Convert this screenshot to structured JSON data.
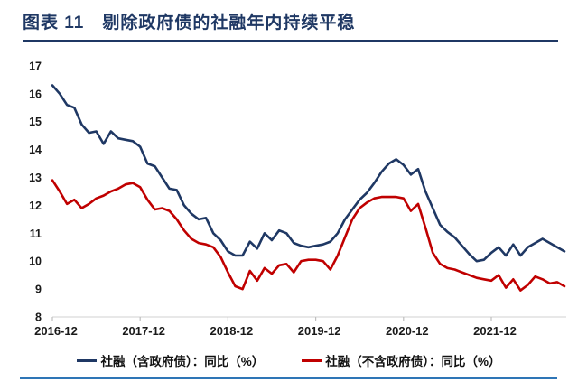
{
  "header": {
    "title": "图表 11　剔除政府债的社融年内持续平稳"
  },
  "colors": {
    "title": "#1F3864",
    "title_rule": "#1F3864",
    "bottom_rule": "#2E75B6",
    "axis_line": "#D9D9D9",
    "axis_tick": "#BFBFBF",
    "tick_text": "#1A1A1A"
  },
  "chart_data": {
    "type": "line",
    "title": "图表 11　剔除政府债的社融年内持续平稳",
    "xlabel": "",
    "ylabel": "",
    "ylim": [
      8,
      17
    ],
    "grid": false,
    "legend_position": "bottom",
    "x_start": "2016-12",
    "x_frequency": "monthly",
    "x_tick_labels": [
      "2016-12",
      "2017-12",
      "2018-12",
      "2019-12",
      "2020-12",
      "2021-12"
    ],
    "x_tick_month_index": [
      0,
      12,
      24,
      36,
      48,
      60
    ],
    "y_ticks": [
      17,
      16,
      15,
      14,
      13,
      12,
      11,
      10,
      9,
      8
    ],
    "series": [
      {
        "name": "社融（含政府债）：同比（%）",
        "color": "#1F3864",
        "values": [
          16.3,
          16.0,
          15.6,
          15.5,
          14.9,
          14.6,
          14.65,
          14.2,
          14.65,
          14.4,
          14.35,
          14.3,
          14.1,
          13.5,
          13.4,
          13.0,
          12.6,
          12.55,
          12.0,
          11.7,
          11.5,
          11.55,
          11.0,
          10.75,
          10.35,
          10.2,
          10.2,
          10.7,
          10.45,
          11.0,
          10.75,
          11.1,
          11.0,
          10.65,
          10.55,
          10.5,
          10.55,
          10.6,
          10.7,
          11.0,
          11.5,
          11.85,
          12.2,
          12.45,
          12.8,
          13.2,
          13.5,
          13.65,
          13.45,
          13.1,
          13.3,
          12.5,
          11.9,
          11.3,
          11.05,
          10.85,
          10.55,
          10.25,
          10.0,
          10.05,
          10.3,
          10.5,
          10.2,
          10.6,
          10.2,
          10.5,
          10.65,
          10.8,
          10.65,
          10.5,
          10.35
        ]
      },
      {
        "name": "社融（不含政府债）：同比（%）",
        "color": "#C00000",
        "values": [
          12.9,
          12.5,
          12.05,
          12.2,
          11.9,
          12.05,
          12.25,
          12.35,
          12.5,
          12.6,
          12.75,
          12.8,
          12.65,
          12.2,
          11.85,
          11.9,
          11.8,
          11.5,
          11.1,
          10.8,
          10.65,
          10.6,
          10.5,
          10.15,
          9.6,
          9.1,
          9.0,
          9.65,
          9.3,
          9.75,
          9.55,
          9.85,
          9.9,
          9.6,
          10.0,
          10.05,
          10.05,
          10.0,
          9.7,
          10.2,
          10.85,
          11.5,
          11.9,
          12.1,
          12.25,
          12.3,
          12.3,
          12.3,
          12.25,
          11.8,
          12.05,
          11.2,
          10.3,
          9.9,
          9.75,
          9.7,
          9.6,
          9.5,
          9.4,
          9.35,
          9.3,
          9.5,
          9.05,
          9.35,
          8.95,
          9.15,
          9.45,
          9.35,
          9.2,
          9.25,
          9.1
        ]
      }
    ]
  }
}
